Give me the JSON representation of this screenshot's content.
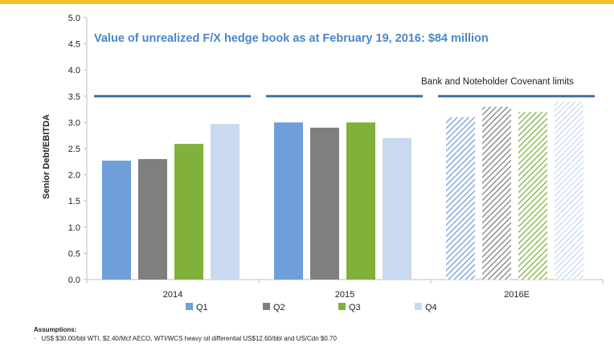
{
  "chart_data": {
    "type": "bar",
    "title": "Value of unrealized F/X hedge book as at February 19, 2016: $84 million",
    "xlabel": "",
    "ylabel": "Senior Debt/EBITDA",
    "ylim": [
      0,
      5
    ],
    "yticks": [
      "0.0",
      "0.5",
      "1.0",
      "1.5",
      "2.0",
      "2.5",
      "3.0",
      "3.5",
      "4.0",
      "4.5",
      "5.0"
    ],
    "categories": [
      "2014",
      "2015",
      "2016E"
    ],
    "series": [
      {
        "name": "Q1",
        "values": [
          2.27,
          3.0,
          3.1
        ],
        "color": "#6f9fd8"
      },
      {
        "name": "Q2",
        "values": [
          2.3,
          2.9,
          3.3
        ],
        "color": "#7f7f7f"
      },
      {
        "name": "Q3",
        "values": [
          2.59,
          3.0,
          3.2
        ],
        "color": "#7fb13b"
      },
      {
        "name": "Q4",
        "values": [
          2.97,
          2.7,
          3.4
        ],
        "color": "#c9d9ef"
      }
    ],
    "hatched_category": "2016E",
    "covenant_limit": {
      "value": 3.5,
      "label": "Bank and Noteholder Covenant limits",
      "color": "#3f6fb5"
    },
    "legend_position": "bottom",
    "grid": false
  },
  "colors": {
    "title": "#4a86c6",
    "top_bar": "#f2c12e"
  },
  "footnote": {
    "title": "Assumptions:",
    "lines": [
      "US$ $30.00/bbl WTI, $2.40/Mcf AECO, WTI/WCS heavy oil differential US$12.60/bbl and US/Cdn $0.70"
    ]
  }
}
